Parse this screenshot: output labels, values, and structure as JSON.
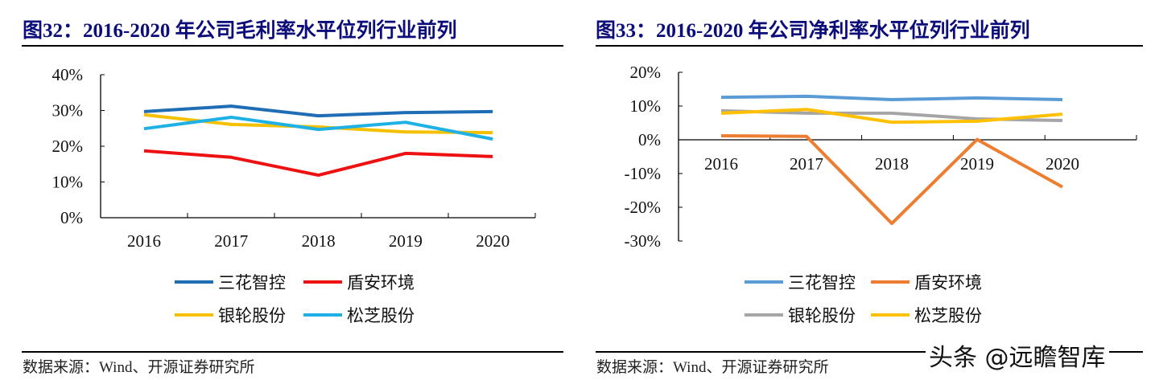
{
  "charts_text": [
    {
      "title": "图32：2016-2020 年公司毛利率水平位列行业前列",
      "source": "数据来源：Wind、开源证券研究所"
    },
    {
      "title": "图33：2016-2020 年公司净利率水平位列行业前列",
      "source": "数据来源：Wind、开源证券研究所"
    }
  ],
  "watermark": "头条 @远瞻智库",
  "chart_data": [
    {
      "type": "line",
      "title": "图32：2016-2020 年公司毛利率水平位列行业前列",
      "categories": [
        "2016",
        "2017",
        "2018",
        "2019",
        "2020"
      ],
      "ylim": [
        0,
        40
      ],
      "yticks": [
        "0%",
        "10%",
        "20%",
        "30%",
        "40%"
      ],
      "ytick_values": [
        0,
        10,
        20,
        30,
        40
      ],
      "unit": "%",
      "grid": false,
      "legend_placement": "bottom",
      "series": [
        {
          "name": "三花智控",
          "color": "#1f6db5",
          "values": [
            29.7,
            31.2,
            28.5,
            29.4,
            29.7
          ]
        },
        {
          "name": "盾安环境",
          "color": "#ee1111",
          "values": [
            18.7,
            16.9,
            11.9,
            18.0,
            17.1
          ]
        },
        {
          "name": "银轮股份",
          "color": "#f5c000",
          "values": [
            28.8,
            26.1,
            25.4,
            24.0,
            23.8
          ]
        },
        {
          "name": "松芝股份",
          "color": "#1fb1e6",
          "values": [
            24.9,
            28.1,
            24.7,
            26.7,
            22.0
          ]
        }
      ]
    },
    {
      "type": "line",
      "title": "图33：2016-2020 年公司净利率水平位列行业前列",
      "categories": [
        "2016",
        "2017",
        "2018",
        "2019",
        "2020"
      ],
      "ylim": [
        -30,
        20
      ],
      "yticks": [
        "-30%",
        "-20%",
        "-10%",
        "0%",
        "10%",
        "20%"
      ],
      "ytick_values": [
        -30,
        -20,
        -10,
        0,
        10,
        20
      ],
      "unit": "%",
      "grid": false,
      "legend_placement": "bottom",
      "series": [
        {
          "name": "三花智控",
          "color": "#5b9bd5",
          "values": [
            12.6,
            12.9,
            11.9,
            12.4,
            11.9
          ]
        },
        {
          "name": "盾安环境",
          "color": "#ed7d31",
          "values": [
            1.2,
            1.0,
            -24.8,
            0.1,
            -14.0
          ]
        },
        {
          "name": "银轮股份",
          "color": "#a5a5a5",
          "values": [
            8.6,
            7.9,
            7.9,
            6.2,
            5.7
          ]
        },
        {
          "name": "松芝股份",
          "color": "#ffc000",
          "values": [
            7.9,
            9.0,
            5.2,
            5.5,
            7.6
          ]
        }
      ]
    }
  ]
}
